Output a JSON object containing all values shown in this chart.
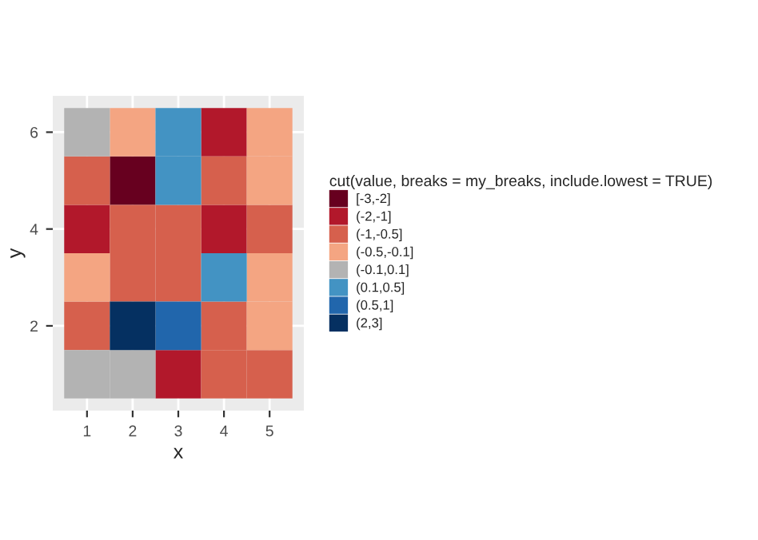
{
  "chart_data": {
    "type": "scatter",
    "marker": "square",
    "xlabel": "x",
    "ylabel": "y",
    "legend_title": "cut(value, breaks = my_breaks, include.lowest = TRUE)",
    "legend": "right",
    "grid": true,
    "xlim": [
      0.25,
      5.75
    ],
    "xticks": [
      1,
      2,
      3,
      4,
      5
    ],
    "ylim": [
      0.25,
      6.75
    ],
    "yticks": [
      2,
      4,
      6
    ],
    "series": [
      {
        "name": "[-3,-2]",
        "color": "#67001f",
        "x": [
          2
        ],
        "values": [
          5
        ]
      },
      {
        "name": "(-2,-1]",
        "color": "#b2182b",
        "x": [
          4,
          1,
          4,
          3
        ],
        "values": [
          6,
          4,
          4,
          1
        ]
      },
      {
        "name": "(-1,-0.5]",
        "color": "#d6604d",
        "x": [
          1,
          4,
          2,
          3,
          5,
          2,
          3,
          1,
          4,
          4,
          5
        ],
        "values": [
          5,
          5,
          4,
          4,
          4,
          3,
          3,
          2,
          2,
          1,
          1
        ]
      },
      {
        "name": "(-0.5,-0.1]",
        "color": "#f4a582",
        "x": [
          2,
          5,
          5,
          1,
          5,
          5
        ],
        "values": [
          6,
          6,
          5,
          3,
          3,
          2
        ]
      },
      {
        "name": "(-0.1,0.1]",
        "color": "#b3b3b3",
        "x": [
          1,
          1,
          2
        ],
        "values": [
          6,
          1,
          1
        ]
      },
      {
        "name": "(0.1,0.5]",
        "color": "#4393c3",
        "x": [
          3,
          3,
          4
        ],
        "values": [
          6,
          5,
          3
        ]
      },
      {
        "name": "(0.5,1]",
        "color": "#2166ac",
        "x": [
          3
        ],
        "values": [
          2
        ]
      },
      {
        "name": "(2,3]",
        "color": "#053061",
        "x": [
          2
        ],
        "values": [
          2
        ]
      }
    ]
  }
}
